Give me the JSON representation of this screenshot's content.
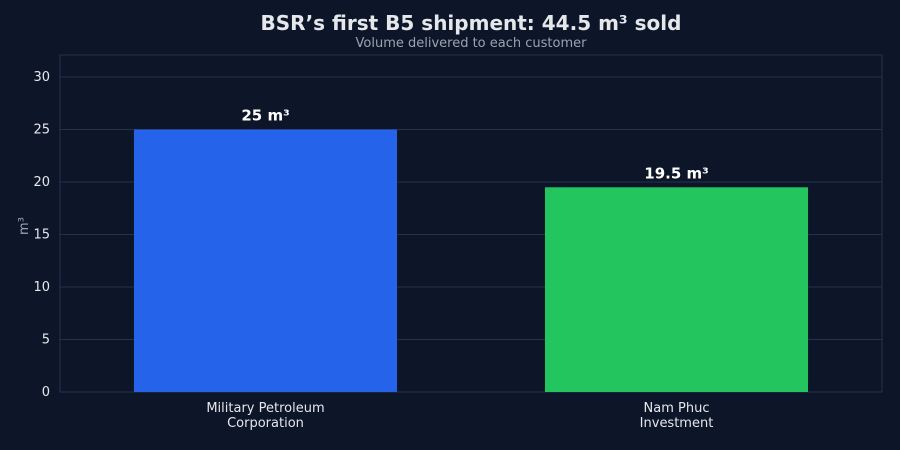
{
  "chart_data": {
    "type": "bar",
    "title": "BSR’s first B5 shipment: 44.5 m³ sold",
    "subtitle": "Volume delivered to each customer",
    "y_label": "m³",
    "categories": [
      "Military Petroleum\nCorporation",
      "Nam Phuc\nInvestment"
    ],
    "values": [
      25,
      19.5
    ],
    "value_labels": [
      "25 m³",
      "19.5 m³"
    ],
    "colors": [
      "#2563eb",
      "#22c55e"
    ],
    "ylim": [
      0,
      32.1
    ],
    "yticks": [
      0,
      5,
      10,
      15,
      20,
      25,
      30
    ],
    "grid": true
  }
}
